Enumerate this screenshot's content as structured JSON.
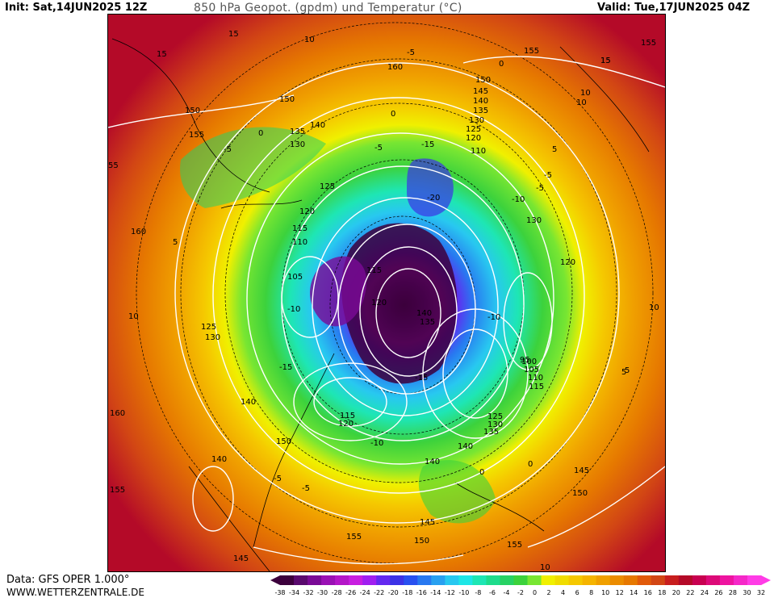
{
  "header": {
    "init": "Init: Sat,14JUN2025 12Z",
    "title": "850 hPa Geopot. (gpdm) und Temperatur (°C)",
    "valid": "Valid: Tue,17JUN2025 04Z"
  },
  "footer": {
    "data_source": "Data: GFS OPER 1.000°",
    "website": "WWW.WETTERZENTRALE.DE"
  },
  "legend": {
    "ticks": [
      "-38",
      "-34",
      "-32",
      "-30",
      "-28",
      "-26",
      "-24",
      "-22",
      "-20",
      "-18",
      "-16",
      "-14",
      "-12",
      "-10",
      "-8",
      "-6",
      "-4",
      "-2",
      "0",
      "2",
      "4",
      "6",
      "8",
      "10",
      "12",
      "14",
      "16",
      "18",
      "20",
      "22",
      "24",
      "26",
      "28",
      "30",
      "32"
    ],
    "colors": [
      "#3c003c",
      "#5a0a6e",
      "#7a0a96",
      "#9a10b4",
      "#b416c8",
      "#c81ee0",
      "#a01ef0",
      "#6428f0",
      "#3c32e6",
      "#2850f0",
      "#2878f0",
      "#28a0f0",
      "#28c8f0",
      "#1ee6e6",
      "#1ee6b4",
      "#1edc8c",
      "#28d264",
      "#3cd23c",
      "#78e632",
      "#f0f000",
      "#f0dc00",
      "#f5c800",
      "#f5b400",
      "#f0a000",
      "#eb8c00",
      "#e67800",
      "#e15a0a",
      "#d24614",
      "#c81e1e",
      "#b40a28",
      "#c80050",
      "#dc0a78",
      "#ee14a0",
      "#f528c8",
      "#ff3ce6"
    ]
  },
  "map": {
    "height_labels": [
      "155",
      "160",
      "150",
      "145",
      "140",
      "135",
      "130",
      "125",
      "120",
      "110",
      "150",
      "155",
      "150",
      "155",
      "140",
      "135",
      "130",
      "125",
      "120",
      "115",
      "110",
      "105",
      "125",
      "130",
      "160",
      "140",
      "160",
      "155",
      "150",
      "140",
      "155",
      "145",
      "140",
      "135",
      "130",
      "125",
      "115",
      "110",
      "105",
      "100",
      "95",
      "150",
      "145",
      "155",
      "150",
      "145",
      "140",
      "120",
      "115",
      "115",
      "120",
      "140",
      "135",
      "130",
      "120",
      "55",
      "15",
      "10",
      "-5",
      "0"
    ],
    "temp_labels": [
      "15",
      "10",
      "5",
      "0",
      "-5",
      "-10",
      "-15",
      "-20",
      "-10",
      "-5",
      "0",
      "5",
      "10",
      "15",
      "-5",
      "-10",
      "-15",
      "-5",
      "0",
      "5",
      "10",
      "15",
      "-10",
      "-15",
      "-5",
      "10",
      "5",
      "-5",
      "0",
      "10"
    ],
    "colors": {
      "land_warm": "#e8781e",
      "sea_warm": "#f0a000",
      "cold_core": "#3c003c",
      "contour_geopotential": "#ffffff",
      "contour_temperature": "#000000"
    }
  }
}
